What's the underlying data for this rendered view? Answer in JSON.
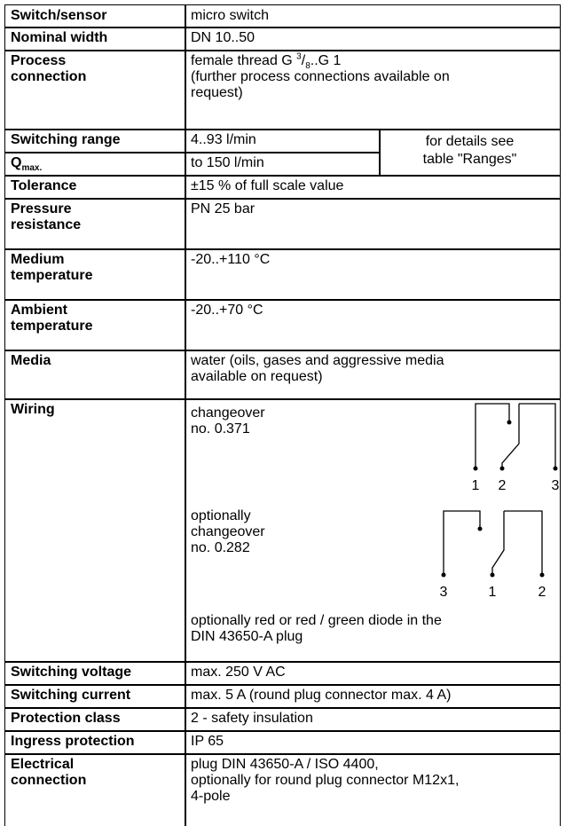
{
  "rows": [
    {
      "label": [
        "Switch/sensor"
      ],
      "value": [
        "micro switch"
      ]
    },
    {
      "label": [
        "Nominal width"
      ],
      "value": [
        "DN 10..50"
      ]
    },
    {
      "label": [
        "Process",
        "connection"
      ],
      "value": [
        {
          "parts": [
            "female thread G ",
            "3",
            "/",
            "8",
            "..G 1"
          ]
        },
        "(further process connections available on",
        "request)"
      ]
    },
    {
      "label": [
        "Switching range"
      ],
      "value": [
        "4..93 l/min"
      ]
    },
    {
      "label": [
        {
          "text": "Q",
          "sub": "max."
        }
      ],
      "value": [
        "to 150 l/min"
      ]
    },
    {
      "label": [
        "Tolerance"
      ],
      "value": [
        "±15 % of full scale value"
      ]
    },
    {
      "label": [
        "Pressure",
        "resistance"
      ],
      "value": [
        "PN 25 bar"
      ]
    },
    {
      "label": [
        "Medium",
        "temperature"
      ],
      "value": [
        "-20..+110 °C"
      ]
    },
    {
      "label": [
        "Ambient",
        "temperature"
      ],
      "value": [
        "-20..+70 °C"
      ]
    },
    {
      "label": [
        "Media"
      ],
      "value": [
        "water (oils, gases and aggressive media",
        "available on request)"
      ]
    },
    {
      "label": [
        "Wiring"
      ],
      "value": []
    },
    {
      "label": [
        "Switching voltage"
      ],
      "value": [
        "max. 250 V AC"
      ]
    },
    {
      "label": [
        "Switching current"
      ],
      "value": [
        "max. 5 A (round plug connector max. 4 A)"
      ]
    },
    {
      "label": [
        "Protection class"
      ],
      "value": [
        "2 - safety insulation"
      ]
    },
    {
      "label": [
        "Ingress protection"
      ],
      "value": [
        "IP 65"
      ]
    },
    {
      "label": [
        "Electrical",
        "connection"
      ],
      "value": [
        "plug DIN 43650-A / ISO 4400,",
        "optionally for round plug connector M12x1,",
        "4-pole"
      ]
    }
  ],
  "note": [
    "for details see",
    "table \"Ranges\""
  ],
  "wiring": {
    "option1": [
      "changeover",
      "no. 0.371"
    ],
    "terminals1": [
      "1",
      "2",
      "3"
    ],
    "option2": [
      "optionally",
      "changeover",
      "no. 0.282"
    ],
    "terminals2": [
      "3",
      "1",
      "2"
    ],
    "diode": [
      "optionally red or red / green diode in the",
      "DIN 43650-A plug"
    ]
  }
}
